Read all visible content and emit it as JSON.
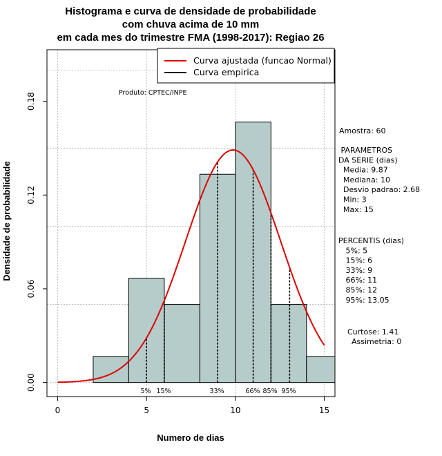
{
  "chart_data": {
    "type": "bar",
    "title_lines": [
      "Histograma e curva de densidade de probabilidade",
      "com chuva acima de 10 mm",
      "em cada mes do trimestre FMA (1998-2017): Regiao 26"
    ],
    "xlabel": "Numero de dias",
    "ylabel": "Densidade de probabilidade",
    "xlim": [
      -0.6,
      15.6
    ],
    "ylim": [
      -0.009,
      0.213
    ],
    "xticks": [
      0,
      5,
      10,
      15
    ],
    "yticks": [
      0.0,
      0.06,
      0.12,
      0.18
    ],
    "ytick_labels": [
      "0.00",
      "0.06",
      "0.12",
      "0.18"
    ],
    "bins": [
      {
        "x0": 2,
        "x1": 4,
        "density": 0.0167
      },
      {
        "x0": 4,
        "x1": 6,
        "density": 0.0667
      },
      {
        "x0": 6,
        "x1": 8,
        "density": 0.05
      },
      {
        "x0": 8,
        "x1": 10,
        "density": 0.1333
      },
      {
        "x0": 10,
        "x1": 12,
        "density": 0.1667
      },
      {
        "x0": 12,
        "x1": 14,
        "density": 0.05
      },
      {
        "x0": 14,
        "x1": 16,
        "density": 0.0167
      }
    ],
    "normal_curve": {
      "mean": 9.87,
      "sd": 2.68,
      "x_from": 0,
      "x_to": 15
    },
    "percentile_lines": [
      {
        "label": "5%",
        "x": 5
      },
      {
        "label": "15%",
        "x": 6
      },
      {
        "label": "33%",
        "x": 9
      },
      {
        "label": "66%",
        "x": 11
      },
      {
        "label": "85%",
        "x": 12
      },
      {
        "label": "95%",
        "x": 13.05
      }
    ],
    "legend": {
      "placement": "top-right",
      "entries": [
        {
          "label": "Curva ajustada (funcao Normal)",
          "color": "#dd0000"
        },
        {
          "label": "Curva empirica",
          "color": "#000000"
        }
      ]
    },
    "annotation": "Produto: CPTEC/INPE",
    "colors": {
      "bar_fill": "#b5cccb",
      "curve": "#dd0000",
      "grid": "#b0b0b0"
    }
  },
  "stats": {
    "amostra": "Amostra: 60",
    "parametros_lines": [
      " PARAMETROS",
      "DA SERIE (dias)",
      "  Media: 9.87",
      "  Mediana: 10",
      "  Desvio padrao: 2.68",
      "  Min: 3",
      "  Max: 15"
    ],
    "percentis_lines": [
      "PERCENTIS (dias)",
      "   5%: 5",
      "   15%: 6",
      "   33%: 9",
      "   66%: 11",
      "   85%: 12",
      "   95%: 13.05"
    ],
    "curtose": "Curtose: 1.41",
    "assimetria": "Assimetria: 0"
  }
}
